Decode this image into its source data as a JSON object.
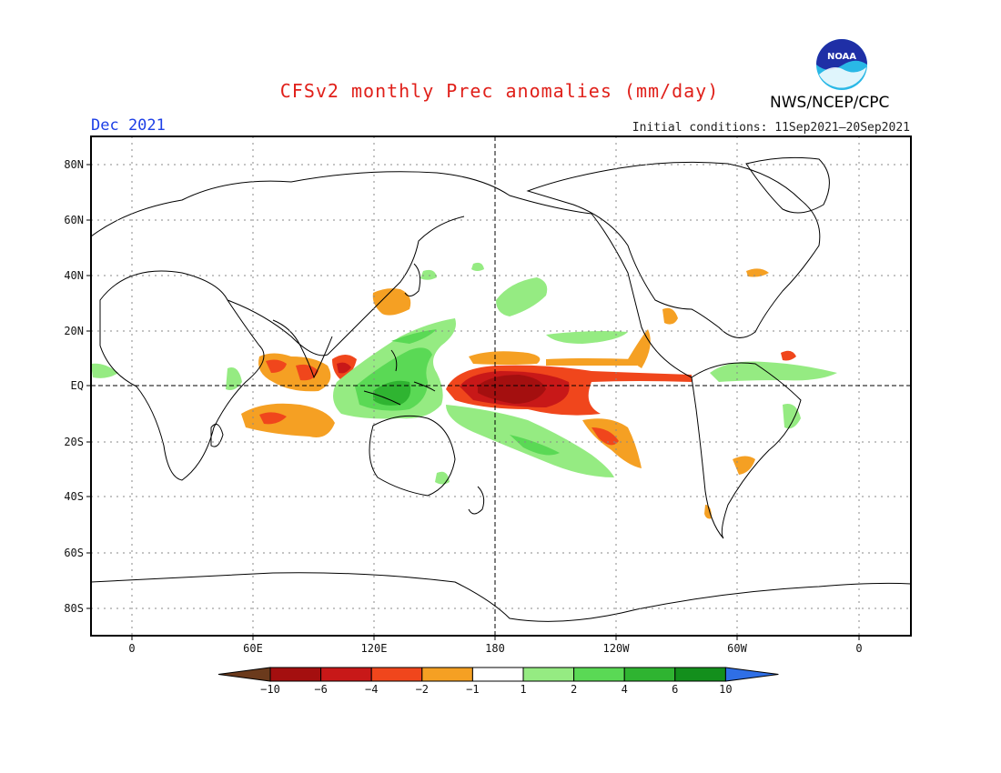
{
  "header": {
    "title": "CFSv2 monthly Prec anomalies (mm/day)",
    "agency": "NWS/NCEP/CPC",
    "logo_text": "NOAA",
    "valid_month": "Dec 2021",
    "initial_conditions": "Initial conditions: 11Sep2021–20Sep2021"
  },
  "map": {
    "lat_labels": [
      "80N",
      "60N",
      "40N",
      "20N",
      "EQ",
      "20S",
      "40S",
      "60S",
      "80S"
    ],
    "lon_labels": [
      "0",
      "60E",
      "120E",
      "180",
      "120W",
      "60W",
      "0"
    ]
  },
  "colorbar": {
    "colors": [
      "#6b3a1c",
      "#a40f0f",
      "#c81818",
      "#f0461c",
      "#f5a023",
      "#ffffff",
      "#95eb82",
      "#5ad955",
      "#2fb431",
      "#138f1c",
      "#2f6fe6"
    ],
    "tick_labels": [
      "-10",
      "-6",
      "-4",
      "-2",
      "-1",
      "1",
      "2",
      "4",
      "6",
      "10"
    ]
  }
}
